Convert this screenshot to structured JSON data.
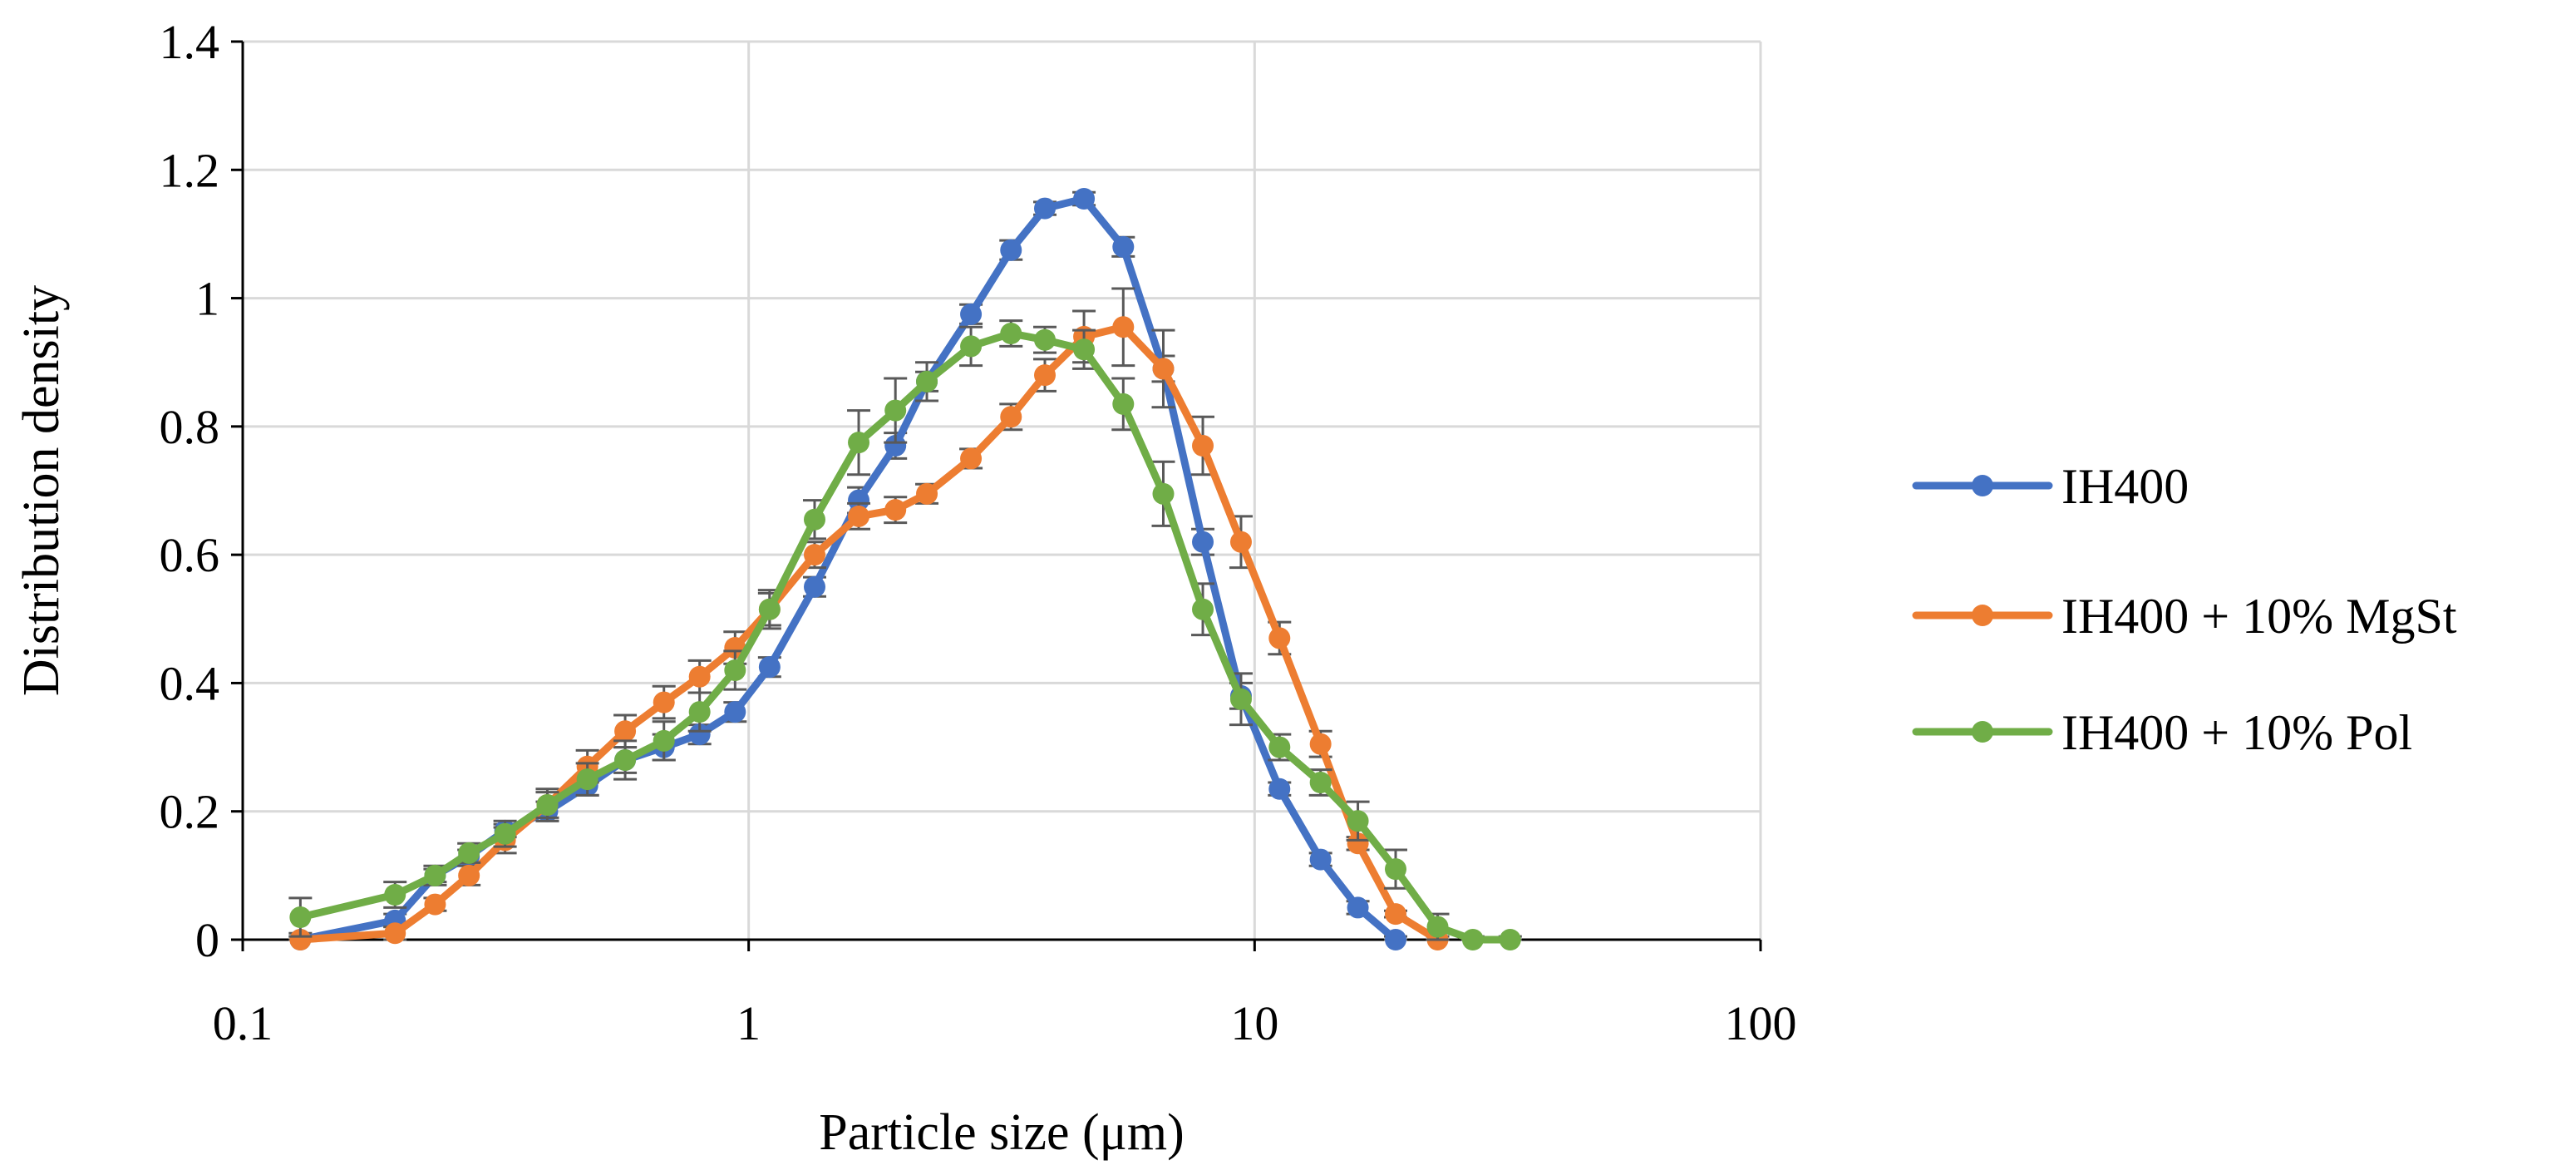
{
  "chart_data": {
    "type": "line",
    "title": "",
    "xlabel": "Particle size (μm)",
    "ylabel": "Distribution density",
    "xscale": "log",
    "xlim": [
      0.1,
      100
    ],
    "ylim": [
      0,
      1.4
    ],
    "xticks": [
      0.1,
      1,
      10,
      100
    ],
    "xtick_labels": [
      "0.1",
      "1",
      "10",
      "100"
    ],
    "yticks": [
      0,
      0.2,
      0.4,
      0.6,
      0.8,
      1,
      1.2,
      1.4
    ],
    "ytick_labels": [
      "0",
      "0.2",
      "0.4",
      "0.6",
      "0.8",
      "1",
      "1.2",
      "1.4"
    ],
    "grid": true,
    "legend_position": "right",
    "series": [
      {
        "name": "IH400",
        "color": "#4472C4",
        "x": [
          0.13,
          0.2,
          0.24,
          0.28,
          0.33,
          0.4,
          0.48,
          0.57,
          0.68,
          0.8,
          0.94,
          1.1,
          1.35,
          1.65,
          1.95,
          2.25,
          2.75,
          3.3,
          3.85,
          4.6,
          5.5,
          6.6,
          7.9,
          9.4,
          11.2,
          13.5,
          16,
          19
        ],
        "y": [
          0,
          0.03,
          0.1,
          0.13,
          0.17,
          0.2,
          0.24,
          0.28,
          0.3,
          0.32,
          0.355,
          0.425,
          0.55,
          0.685,
          0.77,
          0.87,
          0.975,
          1.075,
          1.14,
          1.155,
          1.08,
          0.89,
          0.62,
          0.38,
          0.235,
          0.125,
          0.05,
          0
        ],
        "error": [
          0.01,
          0.01,
          0.01,
          0.01,
          0.01,
          0.015,
          0.015,
          0.02,
          0.02,
          0.015,
          0.015,
          0.015,
          0.015,
          0.02,
          0.02,
          0.015,
          0.015,
          0.015,
          0.01,
          0.01,
          0.015,
          0.02,
          0.02,
          0.02,
          0.01,
          0.01,
          0.01,
          0.005
        ]
      },
      {
        "name": "IH400 + 10% MgSt",
        "color": "#ED7D31",
        "x": [
          0.13,
          0.2,
          0.24,
          0.28,
          0.33,
          0.4,
          0.48,
          0.57,
          0.68,
          0.8,
          0.94,
          1.1,
          1.35,
          1.65,
          1.95,
          2.25,
          2.75,
          3.3,
          3.85,
          4.6,
          5.5,
          6.6,
          7.9,
          9.4,
          11.2,
          13.5,
          16,
          19,
          23
        ],
        "y": [
          0,
          0.01,
          0.055,
          0.1,
          0.155,
          0.21,
          0.27,
          0.325,
          0.37,
          0.41,
          0.455,
          0.515,
          0.6,
          0.66,
          0.67,
          0.695,
          0.75,
          0.815,
          0.88,
          0.94,
          0.955,
          0.89,
          0.77,
          0.62,
          0.47,
          0.305,
          0.15,
          0.04,
          0
        ],
        "error": [
          0.005,
          0.01,
          0.01,
          0.015,
          0.02,
          0.025,
          0.025,
          0.025,
          0.025,
          0.025,
          0.025,
          0.025,
          0.02,
          0.02,
          0.02,
          0.015,
          0.015,
          0.02,
          0.025,
          0.04,
          0.06,
          0.06,
          0.045,
          0.04,
          0.025,
          0.02,
          0.01,
          0.005,
          0.005
        ]
      },
      {
        "name": "IH400 + 10% Pol",
        "color": "#70AD47",
        "x": [
          0.13,
          0.2,
          0.24,
          0.28,
          0.33,
          0.4,
          0.48,
          0.57,
          0.68,
          0.8,
          0.94,
          1.1,
          1.35,
          1.65,
          1.95,
          2.25,
          2.75,
          3.3,
          3.85,
          4.6,
          5.5,
          6.6,
          7.9,
          9.4,
          11.2,
          13.5,
          16,
          19,
          23,
          27,
          32
        ],
        "y": [
          0.035,
          0.07,
          0.1,
          0.135,
          0.165,
          0.21,
          0.25,
          0.28,
          0.31,
          0.355,
          0.42,
          0.515,
          0.655,
          0.775,
          0.825,
          0.87,
          0.925,
          0.945,
          0.935,
          0.92,
          0.835,
          0.695,
          0.515,
          0.375,
          0.3,
          0.245,
          0.185,
          0.11,
          0.02,
          0,
          0
        ],
        "error": [
          0.03,
          0.02,
          0.015,
          0.015,
          0.02,
          0.02,
          0.025,
          0.03,
          0.03,
          0.03,
          0.03,
          0.03,
          0.03,
          0.05,
          0.05,
          0.03,
          0.03,
          0.02,
          0.02,
          0.03,
          0.04,
          0.05,
          0.04,
          0.04,
          0.02,
          0.02,
          0.03,
          0.03,
          0.02,
          0.005,
          0.005
        ]
      }
    ]
  }
}
